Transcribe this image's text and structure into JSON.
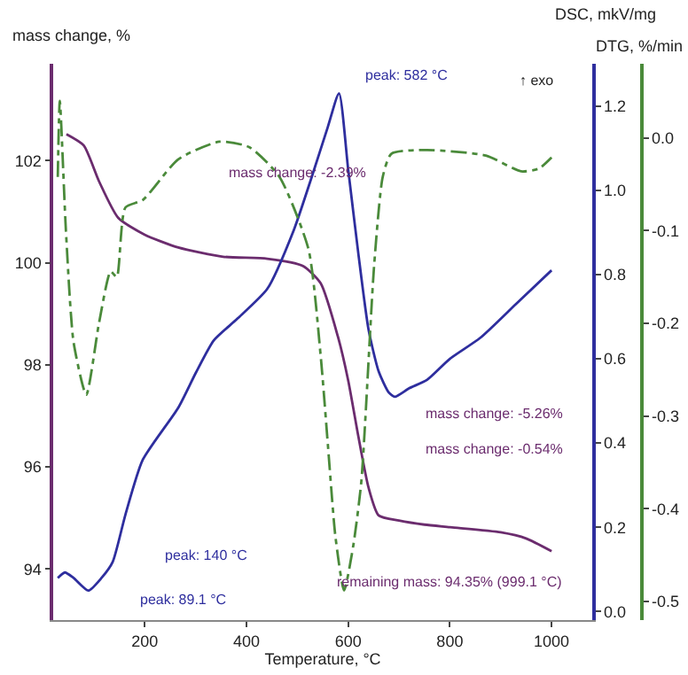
{
  "chart_data": {
    "type": "line",
    "xlabel": "Temperature, °C",
    "ylabel": "mass change, %",
    "y2label": "DSC, mkV/mg",
    "y3label": "DTG, %/min",
    "xlim": [
      20,
      1080
    ],
    "xticks": [
      200,
      400,
      600,
      800,
      1000
    ],
    "ylim": [
      93.0,
      103.9
    ],
    "yticks": [
      94,
      96,
      98,
      100,
      102
    ],
    "y2lim": [
      -0.02,
      1.3
    ],
    "y2ticks": [
      {
        "value": 0.0,
        "label": "0.0"
      },
      0.2,
      0.4,
      0.6,
      0.8,
      {
        "value": 1.0,
        "label": "1.0"
      },
      1.2
    ],
    "y3lim": [
      -0.52,
      0.08
    ],
    "y3ticks": [
      -0.5,
      -0.4,
      -0.3,
      -0.2,
      -0.1,
      {
        "value": 0.0,
        "label": "0.0"
      }
    ],
    "legend": false,
    "marker": "none",
    "series": [
      {
        "color": "#6b2c6e",
        "axis": "y",
        "line_style": "solid",
        "x": [
          46,
          80,
          110,
          148,
          200,
          266,
          354,
          441,
          511,
          546,
          580,
          600,
          620,
          640,
          660,
          700,
          750,
          800,
          900,
          950,
          1000
        ],
        "values": [
          102.52,
          102.3,
          101.6,
          100.88,
          100.55,
          100.3,
          100.12,
          100.08,
          99.94,
          99.6,
          98.55,
          97.7,
          96.6,
          95.6,
          95.05,
          94.95,
          94.87,
          94.82,
          94.72,
          94.6,
          94.35
        ]
      },
      {
        "color": "#2e2e9e",
        "axis": "y2",
        "line_style": "solid",
        "x": [
          29,
          43,
          60,
          89,
          115,
          137,
          162,
          196,
          266,
          301,
          336,
          382,
          441,
          493,
          528,
          560,
          582,
          600,
          620,
          640,
          660,
          680,
          692,
          720,
          755,
          800,
          860,
          930,
          1000
        ],
        "values": [
          0.08,
          0.093,
          0.08,
          0.05,
          0.08,
          0.118,
          0.23,
          0.36,
          0.484,
          0.568,
          0.644,
          0.695,
          0.766,
          0.905,
          1.03,
          1.15,
          1.23,
          1.05,
          0.85,
          0.67,
          0.57,
          0.52,
          0.51,
          0.53,
          0.55,
          0.6,
          0.65,
          0.73,
          0.81
        ]
      },
      {
        "color": "#4a8a3a",
        "axis": "y3",
        "line_style": "dashed",
        "x": [
          29,
          33,
          45,
          60,
          85,
          110,
          133,
          145,
          162,
          196,
          266,
          347,
          406,
          465,
          522,
          546,
          560,
          575,
          592,
          610,
          626,
          651,
          668,
          685,
          755,
          871,
          940,
          975,
          1000
        ],
        "values": [
          -0.042,
          0.04,
          -0.1,
          -0.22,
          -0.277,
          -0.2,
          -0.144,
          -0.15,
          -0.075,
          -0.067,
          -0.023,
          -0.004,
          -0.01,
          -0.042,
          -0.12,
          -0.235,
          -0.33,
          -0.43,
          -0.488,
          -0.44,
          -0.37,
          -0.138,
          -0.042,
          -0.017,
          -0.013,
          -0.019,
          -0.036,
          -0.033,
          -0.021
        ]
      }
    ],
    "annotations": [
      "mass change: -2.39%",
      "mass change: -5.26%",
      "mass change: -0.54%",
      "remaining mass: 94.35% (999.1 °C)",
      "peak: 582 °C",
      "peak: 140 °C",
      "peak: 89.1 °C",
      "↑ exo"
    ]
  }
}
